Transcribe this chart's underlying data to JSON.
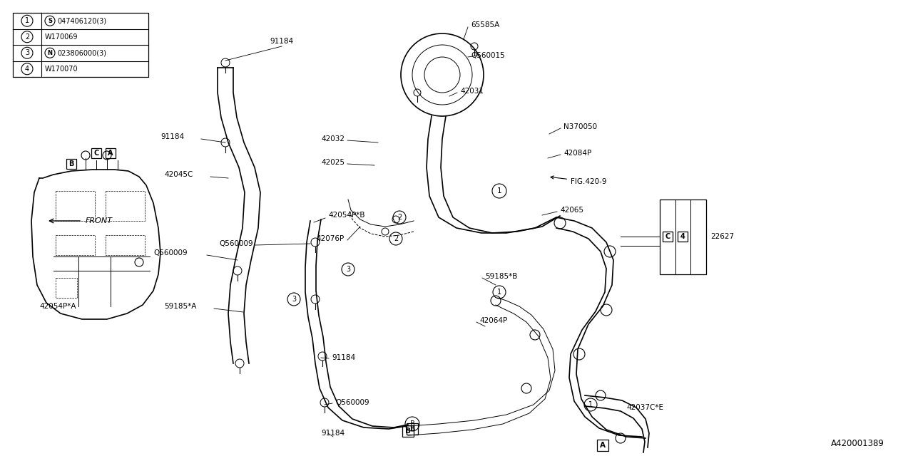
{
  "bg_color": "#ffffff",
  "line_color": "#000000",
  "fig_width": 12.8,
  "fig_height": 6.4,
  "dpi": 100,
  "part_number": "A420001389",
  "legend": [
    {
      "num": "1",
      "prefix": "S",
      "part": "047406120(3)"
    },
    {
      "num": "2",
      "prefix": "",
      "part": "W170069"
    },
    {
      "num": "3",
      "prefix": "N",
      "part": "023806000(3)"
    },
    {
      "num": "4",
      "prefix": "",
      "part": "W170070"
    }
  ]
}
